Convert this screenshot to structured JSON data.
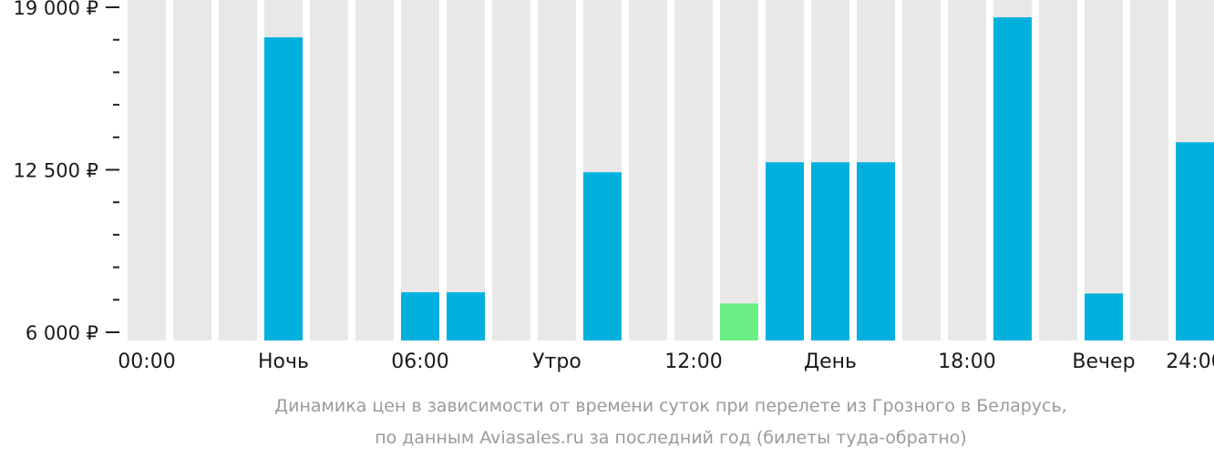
{
  "chart_data": {
    "type": "bar",
    "categories": [
      "00:00",
      "01:00",
      "02:00",
      "03:00",
      "04:00",
      "05:00",
      "06:00",
      "07:00",
      "08:00",
      "09:00",
      "10:00",
      "11:00",
      "12:00",
      "13:00",
      "14:00",
      "15:00",
      "16:00",
      "17:00",
      "18:00",
      "19:00",
      "20:00",
      "21:00",
      "22:00",
      "23:00"
    ],
    "values": [
      null,
      null,
      null,
      17800,
      null,
      null,
      7600,
      7600,
      null,
      null,
      12400,
      null,
      null,
      7150,
      12800,
      12800,
      12800,
      null,
      null,
      18600,
      null,
      7550,
      null,
      13600
    ],
    "highlight_index": 13,
    "ylim": [
      6000,
      19000
    ],
    "y_ticks": [
      "6 000 ₽",
      "12 500 ₽",
      "19 000 ₽"
    ],
    "y_tick_values": [
      6000,
      12500,
      19000
    ],
    "x_tick_labels": [
      "00:00",
      "Ночь",
      "06:00",
      "Утро",
      "12:00",
      "День",
      "18:00",
      "Вечер",
      "24:00"
    ],
    "caption_lines": [
      "Динамика цен в зависимости от времени суток при перелете из Грозного в Беларусь,",
      "по данным Aviasales.ru за последний год (билеты туда-обратно)"
    ],
    "colors": {
      "bar": "#00b0dd",
      "highlight": "#6bef84",
      "background_bar": "#e8e8e8",
      "axis": "#222222",
      "caption": "#9a9a9a"
    }
  }
}
